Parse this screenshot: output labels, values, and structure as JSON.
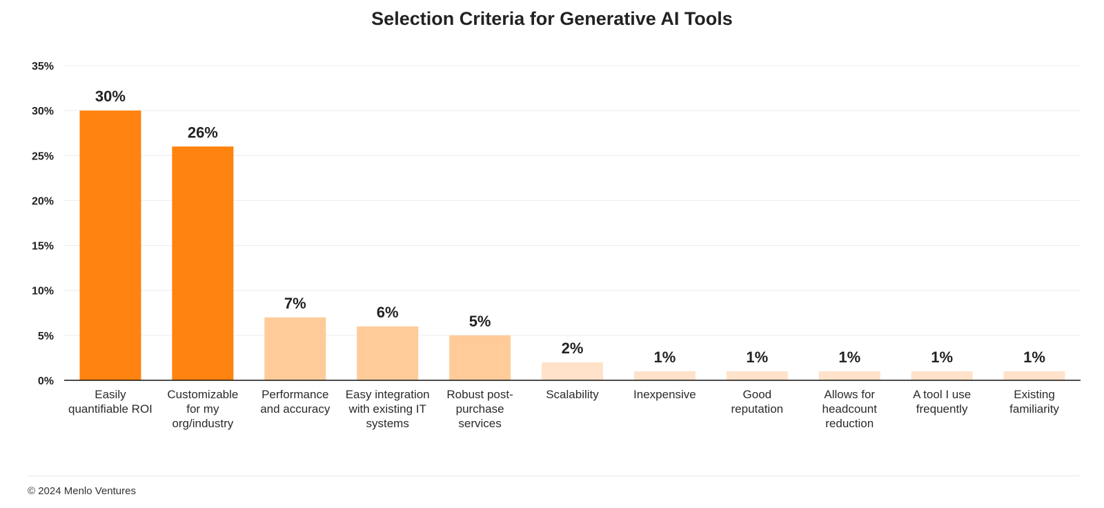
{
  "colors": {
    "high": "#ff8310",
    "mid": "#ffcc99",
    "low": "#ffe2c9",
    "axis": "#111111",
    "grid": "#ececec"
  },
  "chart_data": {
    "type": "bar",
    "title": "Selection Criteria for Generative AI Tools",
    "xlabel": "",
    "ylabel": "",
    "ylim": [
      0,
      35
    ],
    "y_ticks": [
      0,
      5,
      10,
      15,
      20,
      25,
      30,
      35
    ],
    "y_tick_labels": [
      "0%",
      "5%",
      "10%",
      "15%",
      "20%",
      "25%",
      "30%",
      "35%"
    ],
    "grid": true,
    "legend": "none",
    "categories": [
      [
        "Easily",
        "quantifiable ROI"
      ],
      [
        "Customizable",
        "for my",
        "org/industry"
      ],
      [
        "Performance",
        "and accuracy"
      ],
      [
        "Easy integration",
        "with existing IT",
        "systems"
      ],
      [
        "Robust post-",
        "purchase",
        "services"
      ],
      [
        "Scalability"
      ],
      [
        "Inexpensive"
      ],
      [
        "Good",
        "reputation"
      ],
      [
        "Allows for",
        "headcount",
        "reduction"
      ],
      [
        "A tool I use",
        "frequently"
      ],
      [
        "Existing",
        "familiarity"
      ]
    ],
    "values": [
      30,
      26,
      7,
      6,
      5,
      2,
      1,
      1,
      1,
      1,
      1
    ],
    "value_labels": [
      "30%",
      "26%",
      "7%",
      "6%",
      "5%",
      "2%",
      "1%",
      "1%",
      "1%",
      "1%",
      "1%"
    ],
    "bar_color_tiers": [
      "high",
      "high",
      "mid",
      "mid",
      "mid",
      "low",
      "low",
      "low",
      "low",
      "low",
      "low"
    ]
  },
  "footer": {
    "copyright": "© 2024 Menlo Ventures"
  }
}
